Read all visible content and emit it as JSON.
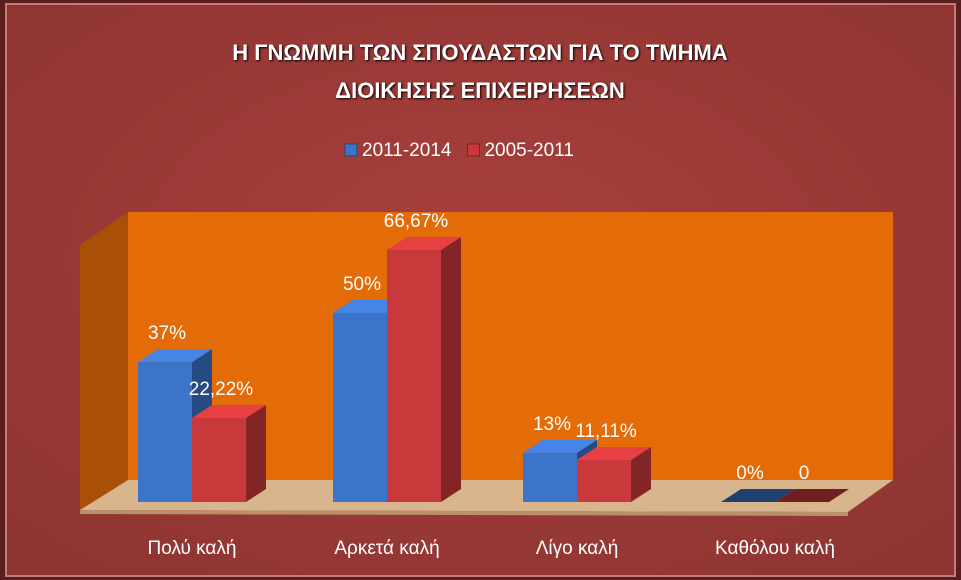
{
  "chart_data": {
    "type": "bar3d",
    "title": "Η ΓΝΩΜΜΗ ΤΩΝ ΣΠΟΥΔΑΣΤΩΝ ΓΙΑ ΤΟ ΤΜΗΜΑ ΔΙΟΙΚΗΣΗΣ ΕΠΙΧΕΙΡΗΣΕΩΝ",
    "categories": [
      "Πολύ καλή",
      "Αρκετά καλή",
      "Λίγο καλή",
      "Καθόλου καλή"
    ],
    "series": [
      {
        "name": "2011-2014",
        "color": "#3b74c9",
        "values": [
          37,
          50,
          13,
          0
        ],
        "value_labels": [
          "37%",
          "50%",
          "13%",
          "0%"
        ]
      },
      {
        "name": "2005-2011",
        "color": "#c9383a",
        "values": [
          22.22,
          66.67,
          11.11,
          0
        ],
        "value_labels": [
          "22,22%",
          "66,67%",
          "11,11%",
          "0"
        ]
      }
    ],
    "legend": "top"
  }
}
